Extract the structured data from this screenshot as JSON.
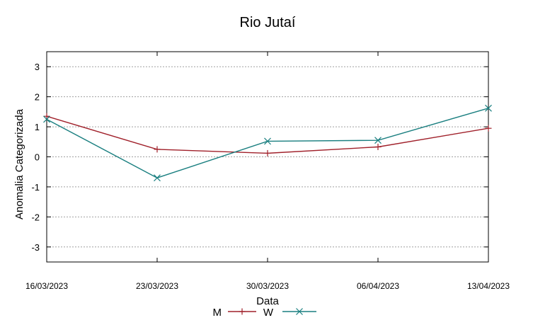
{
  "chart_data": {
    "type": "line",
    "title": "Rio Jutaí",
    "xlabel": "Data",
    "ylabel": "Anomalia Categorizada",
    "categories": [
      "16/03/2023",
      "23/03/2023",
      "30/03/2023",
      "06/04/2023",
      "13/04/2023"
    ],
    "yticks": [
      "3",
      "2",
      "1",
      "0",
      "-1",
      "-2",
      "-3"
    ],
    "ylim": [
      -3.5,
      3.5
    ],
    "grid": true,
    "legend": "bottom-center",
    "series": [
      {
        "name": "M",
        "color": "#a0202a",
        "marker": "plus",
        "values": [
          1.35,
          0.25,
          0.12,
          0.33,
          0.95
        ]
      },
      {
        "name": "W",
        "color": "#1a7f80",
        "marker": "cross",
        "values": [
          1.25,
          -0.7,
          0.52,
          0.55,
          1.62
        ]
      }
    ]
  }
}
